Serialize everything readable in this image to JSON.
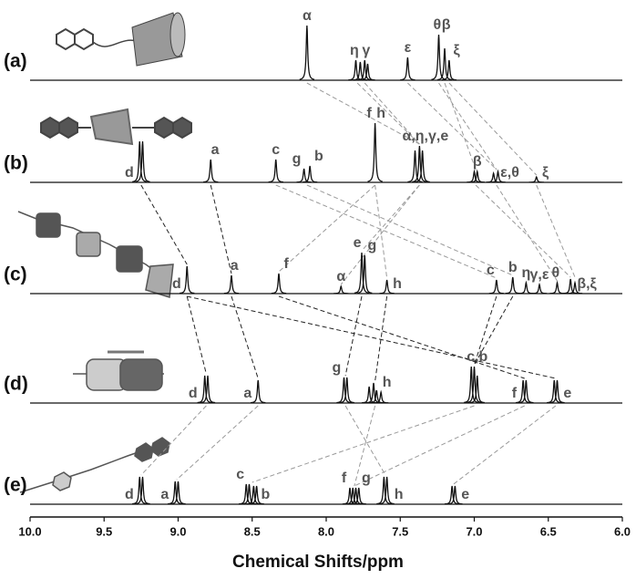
{
  "chart_data": {
    "type": "nmr",
    "x_label": "Chemical Shifts/ppm",
    "xlim": [
      10.0,
      6.0
    ],
    "xticks": [
      {
        "value": 10,
        "label": "10.0"
      },
      9.5,
      {
        "value": 9,
        "label": "9.0"
      },
      8.5,
      {
        "value": 8,
        "label": "8.0"
      },
      7.5,
      {
        "value": 7,
        "label": "7.0"
      },
      6.5,
      {
        "value": 6,
        "label": "6.0"
      }
    ],
    "panels": [
      {
        "label": "(a)",
        "peaks": [
          {
            "shift": 8.13,
            "intensity": 60
          },
          {
            "shift": 7.8,
            "intensity": 22
          },
          {
            "shift": 7.77,
            "intensity": 20
          },
          {
            "shift": 7.74,
            "intensity": 22
          },
          {
            "shift": 7.72,
            "intensity": 18
          },
          {
            "shift": 7.45,
            "intensity": 25
          },
          {
            "shift": 7.24,
            "intensity": 50
          },
          {
            "shift": 7.2,
            "intensity": 35
          },
          {
            "shift": 7.17,
            "intensity": 22
          }
        ],
        "labels": [
          {
            "text": "α",
            "shift": 8.13
          },
          {
            "text": "η",
            "shift": 7.81
          },
          {
            "text": "γ",
            "shift": 7.73
          },
          {
            "text": "ε",
            "shift": 7.45
          },
          {
            "text": "θ",
            "shift": 7.25
          },
          {
            "text": "β",
            "shift": 7.19
          },
          {
            "text": "ξ",
            "shift": 7.12
          }
        ]
      },
      {
        "label": "(b)",
        "peaks": [
          {
            "shift": 9.26,
            "intensity": 45
          },
          {
            "shift": 9.24,
            "intensity": 45
          },
          {
            "shift": 8.78,
            "intensity": 25
          },
          {
            "shift": 8.34,
            "intensity": 25
          },
          {
            "shift": 8.15,
            "intensity": 15
          },
          {
            "shift": 8.11,
            "intensity": 18
          },
          {
            "shift": 7.67,
            "intensity": 65
          },
          {
            "shift": 7.4,
            "intensity": 35
          },
          {
            "shift": 7.37,
            "intensity": 40
          },
          {
            "shift": 7.35,
            "intensity": 35
          },
          {
            "shift": 7.0,
            "intensity": 12
          },
          {
            "shift": 6.98,
            "intensity": 12
          },
          {
            "shift": 6.87,
            "intensity": 10
          },
          {
            "shift": 6.84,
            "intensity": 12
          },
          {
            "shift": 6.58,
            "intensity": 6
          }
        ],
        "labels": [
          {
            "text": "d",
            "shift": 9.33
          },
          {
            "text": "a",
            "shift": 8.75
          },
          {
            "text": "c",
            "shift": 8.34
          },
          {
            "text": "g",
            "shift": 8.2
          },
          {
            "text": "b",
            "shift": 8.05
          },
          {
            "text": "f",
            "shift": 7.71
          },
          {
            "text": "h",
            "shift": 7.63
          },
          {
            "text": "α,η,γ,e",
            "shift": 7.33
          },
          {
            "text": "β",
            "shift": 6.98
          },
          {
            "text": "ε,θ",
            "shift": 6.76
          },
          {
            "text": "ξ",
            "shift": 6.52
          }
        ]
      },
      {
        "label": "(c)",
        "peaks": [
          {
            "shift": 8.94,
            "intensity": 30
          },
          {
            "shift": 8.64,
            "intensity": 20
          },
          {
            "shift": 8.32,
            "intensity": 22
          },
          {
            "shift": 7.9,
            "intensity": 8
          },
          {
            "shift": 7.76,
            "intensity": 45
          },
          {
            "shift": 7.74,
            "intensity": 42
          },
          {
            "shift": 7.59,
            "intensity": 15
          },
          {
            "shift": 6.85,
            "intensity": 15
          },
          {
            "shift": 6.74,
            "intensity": 18
          },
          {
            "shift": 6.65,
            "intensity": 12
          },
          {
            "shift": 6.56,
            "intensity": 10
          },
          {
            "shift": 6.44,
            "intensity": 12
          },
          {
            "shift": 6.35,
            "intensity": 16
          },
          {
            "shift": 6.32,
            "intensity": 12
          }
        ],
        "labels": [
          {
            "text": "d",
            "shift": 9.01
          },
          {
            "text": "a",
            "shift": 8.62
          },
          {
            "text": "f",
            "shift": 8.27
          },
          {
            "text": "α",
            "shift": 7.9
          },
          {
            "text": "e",
            "shift": 7.79
          },
          {
            "text": "g",
            "shift": 7.69
          },
          {
            "text": "h",
            "shift": 7.52
          },
          {
            "text": "c",
            "shift": 6.89
          },
          {
            "text": "b",
            "shift": 6.74
          },
          {
            "text": "η",
            "shift": 6.65
          },
          {
            "text": "γ,ε",
            "shift": 6.56
          },
          {
            "text": "θ",
            "shift": 6.45
          },
          {
            "text": "β,ξ",
            "shift": 6.24
          }
        ]
      },
      {
        "label": "(d)",
        "peaks": [
          {
            "shift": 8.82,
            "intensity": 30
          },
          {
            "shift": 8.8,
            "intensity": 30
          },
          {
            "shift": 8.46,
            "intensity": 25
          },
          {
            "shift": 7.88,
            "intensity": 28
          },
          {
            "shift": 7.86,
            "intensity": 28
          },
          {
            "shift": 7.71,
            "intensity": 18
          },
          {
            "shift": 7.68,
            "intensity": 22
          },
          {
            "shift": 7.66,
            "intensity": 14
          },
          {
            "shift": 7.63,
            "intensity": 12
          },
          {
            "shift": 7.02,
            "intensity": 40
          },
          {
            "shift": 7.0,
            "intensity": 40
          },
          {
            "shift": 6.98,
            "intensity": 30
          },
          {
            "shift": 6.67,
            "intensity": 25
          },
          {
            "shift": 6.65,
            "intensity": 25
          },
          {
            "shift": 6.46,
            "intensity": 25
          },
          {
            "shift": 6.44,
            "intensity": 25
          }
        ],
        "labels": [
          {
            "text": "d",
            "shift": 8.9
          },
          {
            "text": "a",
            "shift": 8.53
          },
          {
            "text": "g",
            "shift": 7.93
          },
          {
            "text": "h",
            "shift": 7.59
          },
          {
            "text": "c,b",
            "shift": 6.98
          },
          {
            "text": "f",
            "shift": 6.73
          },
          {
            "text": "e",
            "shift": 6.37
          }
        ]
      },
      {
        "label": "(e)",
        "peaks": [
          {
            "shift": 9.26,
            "intensity": 30
          },
          {
            "shift": 9.24,
            "intensity": 30
          },
          {
            "shift": 9.02,
            "intensity": 25
          },
          {
            "shift": 9.0,
            "intensity": 25
          },
          {
            "shift": 8.54,
            "intensity": 22
          },
          {
            "shift": 8.52,
            "intensity": 22
          },
          {
            "shift": 8.49,
            "intensity": 20
          },
          {
            "shift": 8.47,
            "intensity": 20
          },
          {
            "shift": 7.84,
            "intensity": 18
          },
          {
            "shift": 7.82,
            "intensity": 18
          },
          {
            "shift": 7.8,
            "intensity": 18
          },
          {
            "shift": 7.78,
            "intensity": 18
          },
          {
            "shift": 7.61,
            "intensity": 30
          },
          {
            "shift": 7.59,
            "intensity": 30
          },
          {
            "shift": 7.15,
            "intensity": 20
          },
          {
            "shift": 7.13,
            "intensity": 20
          }
        ],
        "labels": [
          {
            "text": "d",
            "shift": 9.33
          },
          {
            "text": "a",
            "shift": 9.09
          },
          {
            "text": "c",
            "shift": 8.58
          },
          {
            "text": "b",
            "shift": 8.41
          },
          {
            "text": "f",
            "shift": 7.88
          },
          {
            "text": "g",
            "shift": 7.73
          },
          {
            "text": "h",
            "shift": 7.51
          },
          {
            "text": "e",
            "shift": 7.06
          }
        ]
      }
    ],
    "links": [
      [
        0,
        8.13,
        1,
        7.37
      ],
      [
        0,
        7.79,
        1,
        7.37
      ],
      [
        0,
        7.74,
        1,
        7.37
      ],
      [
        0,
        7.45,
        1,
        6.85
      ],
      [
        0,
        7.24,
        1,
        6.85
      ],
      [
        0,
        7.2,
        1,
        6.99
      ],
      [
        0,
        7.17,
        1,
        6.58
      ],
      [
        1,
        9.25,
        2,
        8.94
      ],
      [
        1,
        8.78,
        2,
        8.64
      ],
      [
        1,
        8.34,
        2,
        6.85
      ],
      [
        1,
        8.13,
        2,
        6.74
      ],
      [
        1,
        7.67,
        2,
        8.32
      ],
      [
        1,
        7.67,
        2,
        7.59
      ],
      [
        1,
        7.37,
        2,
        7.76
      ],
      [
        1,
        7.37,
        2,
        7.9
      ],
      [
        1,
        6.99,
        2,
        6.35
      ],
      [
        1,
        6.85,
        2,
        6.44
      ],
      [
        1,
        6.58,
        2,
        6.32
      ],
      [
        2,
        8.94,
        3,
        8.81
      ],
      [
        2,
        8.64,
        3,
        8.46
      ],
      [
        2,
        8.32,
        3,
        6.66
      ],
      [
        2,
        7.76,
        3,
        7.87
      ],
      [
        2,
        7.59,
        3,
        7.67
      ],
      [
        2,
        6.85,
        3,
        7.0
      ],
      [
        2,
        6.74,
        3,
        7.0
      ],
      [
        2,
        8.94,
        3,
        6.45
      ],
      [
        3,
        8.81,
        4,
        9.25
      ],
      [
        3,
        8.46,
        4,
        9.01
      ],
      [
        3,
        7.87,
        4,
        7.6
      ],
      [
        3,
        7.67,
        4,
        7.81
      ],
      [
        3,
        7.0,
        4,
        8.5
      ],
      [
        3,
        6.66,
        4,
        7.81
      ],
      [
        3,
        6.45,
        4,
        7.14
      ]
    ]
  }
}
